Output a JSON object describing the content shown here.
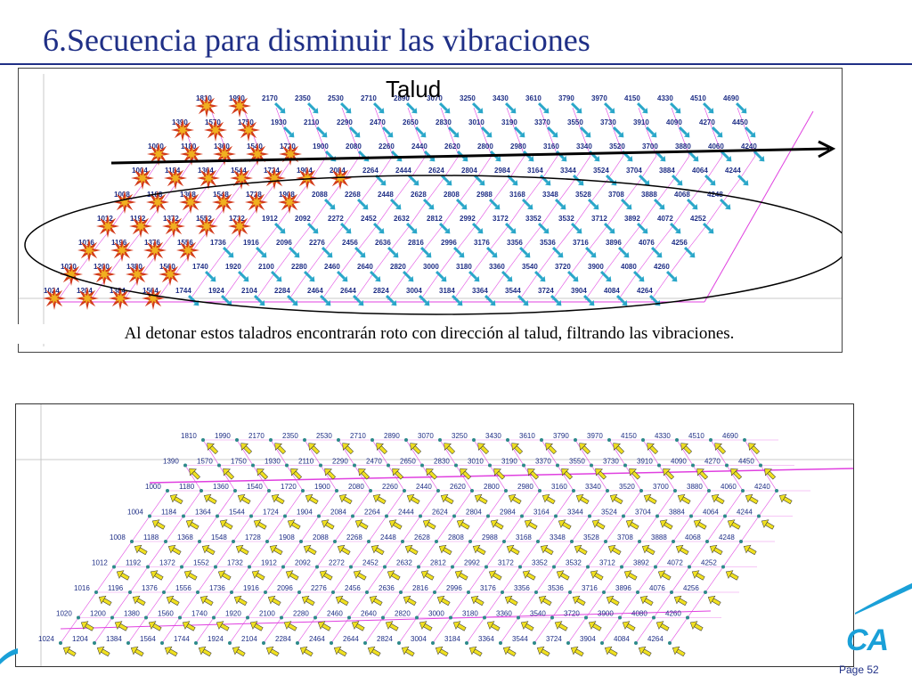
{
  "slide": {
    "title": "6.Secuencia para disminuir las vibraciones",
    "page_label": "Page 52",
    "logo_text": "CA"
  },
  "top_diagram": {
    "label_slope": "Talud",
    "caption": "Al detonar estos taladros encontrarán roto con dirección al talud, filtrando las vibraciones.",
    "rows": [
      [
        "1810",
        "1990",
        "2170",
        "2350",
        "2530",
        "2710",
        "2890",
        "3070",
        "3250",
        "3430",
        "3610",
        "3790",
        "3970",
        "4150",
        "4330",
        "4510",
        "4690"
      ],
      [
        "1390",
        "1570",
        "1750",
        "1930",
        "2110",
        "2290",
        "2470",
        "2650",
        "2830",
        "3010",
        "3190",
        "3370",
        "3550",
        "3730",
        "3910",
        "4090",
        "4270",
        "4450"
      ],
      [
        "1000",
        "1180",
        "1360",
        "1540",
        "1720",
        "1900",
        "2080",
        "2260",
        "2440",
        "2620",
        "2800",
        "2980",
        "3160",
        "3340",
        "3520",
        "3700",
        "3880",
        "4060",
        "4240"
      ],
      [
        "1004",
        "1184",
        "1364",
        "1544",
        "1724",
        "1904",
        "2084",
        "2264",
        "2444",
        "2624",
        "2804",
        "2984",
        "3164",
        "3344",
        "3524",
        "3704",
        "3884",
        "4064",
        "4244"
      ],
      [
        "1008",
        "1188",
        "1368",
        "1548",
        "1728",
        "1908",
        "2088",
        "2268",
        "2448",
        "2628",
        "2808",
        "2988",
        "3168",
        "3348",
        "3528",
        "3708",
        "3888",
        "4068",
        "4248"
      ],
      [
        "1012",
        "1192",
        "1372",
        "1552",
        "1732",
        "1912",
        "2092",
        "2272",
        "2452",
        "2632",
        "2812",
        "2992",
        "3172",
        "3352",
        "3532",
        "3712",
        "3892",
        "4072",
        "4252"
      ],
      [
        "1016",
        "1196",
        "1376",
        "1556",
        "1736",
        "1916",
        "2096",
        "2276",
        "2456",
        "2636",
        "2816",
        "2996",
        "3176",
        "3356",
        "3536",
        "3716",
        "3896",
        "4076",
        "4256"
      ],
      [
        "1020",
        "1200",
        "1380",
        "1560",
        "1740",
        "1920",
        "2100",
        "2280",
        "2460",
        "2640",
        "2820",
        "3000",
        "3180",
        "3360",
        "3540",
        "3720",
        "3900",
        "4080",
        "4260"
      ],
      [
        "1024",
        "1204",
        "1384",
        "1564",
        "1744",
        "1924",
        "2104",
        "2284",
        "2464",
        "2644",
        "2824",
        "3004",
        "3184",
        "3364",
        "3544",
        "3724",
        "3904",
        "4084",
        "4264"
      ]
    ],
    "detonated_counts": [
      2,
      3,
      5,
      7,
      6,
      5,
      4,
      4,
      4
    ]
  },
  "bottom_diagram": {
    "rows": [
      [
        "1810",
        "1990",
        "2170",
        "2350",
        "2530",
        "2710",
        "2890",
        "3070",
        "3250",
        "3430",
        "3610",
        "3790",
        "3970",
        "4150",
        "4330",
        "4510",
        "4690"
      ],
      [
        "1390",
        "1570",
        "1750",
        "1930",
        "2110",
        "2290",
        "2470",
        "2650",
        "2830",
        "3010",
        "3190",
        "3370",
        "3550",
        "3730",
        "3910",
        "4090",
        "4270",
        "4450"
      ],
      [
        "1000",
        "1180",
        "1360",
        "1540",
        "1720",
        "1900",
        "2080",
        "2260",
        "2440",
        "2620",
        "2800",
        "2980",
        "3160",
        "3340",
        "3520",
        "3700",
        "3880",
        "4060",
        "4240"
      ],
      [
        "1004",
        "1184",
        "1364",
        "1544",
        "1724",
        "1904",
        "2084",
        "2264",
        "2444",
        "2624",
        "2804",
        "2984",
        "3164",
        "3344",
        "3524",
        "3704",
        "3884",
        "4064",
        "4244"
      ],
      [
        "1008",
        "1188",
        "1368",
        "1548",
        "1728",
        "1908",
        "2088",
        "2268",
        "2448",
        "2628",
        "2808",
        "2988",
        "3168",
        "3348",
        "3528",
        "3708",
        "3888",
        "4068",
        "4248"
      ],
      [
        "1012",
        "1192",
        "1372",
        "1552",
        "1732",
        "1912",
        "2092",
        "2272",
        "2452",
        "2632",
        "2812",
        "2992",
        "3172",
        "3352",
        "3532",
        "3712",
        "3892",
        "4072",
        "4252"
      ],
      [
        "1016",
        "1196",
        "1376",
        "1556",
        "1736",
        "1916",
        "2096",
        "2276",
        "2456",
        "2636",
        "2816",
        "2996",
        "3176",
        "3356",
        "3536",
        "3716",
        "3896",
        "4076",
        "4256"
      ],
      [
        "1020",
        "1200",
        "1380",
        "1560",
        "1740",
        "1920",
        "2100",
        "2280",
        "2460",
        "2640",
        "2820",
        "3000",
        "3180",
        "3360",
        "3540",
        "3720",
        "3900",
        "4080",
        "4260"
      ],
      [
        "1024",
        "1204",
        "1384",
        "1564",
        "1744",
        "1924",
        "2104",
        "2284",
        "2464",
        "2644",
        "2824",
        "3004",
        "3184",
        "3364",
        "3544",
        "3724",
        "3904",
        "4084",
        "4264"
      ]
    ]
  },
  "colors": {
    "title": "#1f2f86",
    "label_text": "#1f2f86",
    "grid_line": "#e040e0",
    "top_arrow": "#2aa7c9",
    "bottom_arrow": "#f0e020",
    "hole": "#2c8a8a",
    "blast_outer": "#d23a1a",
    "blast_inner": "#f0b020",
    "axis_line": "#c8c8c8"
  }
}
